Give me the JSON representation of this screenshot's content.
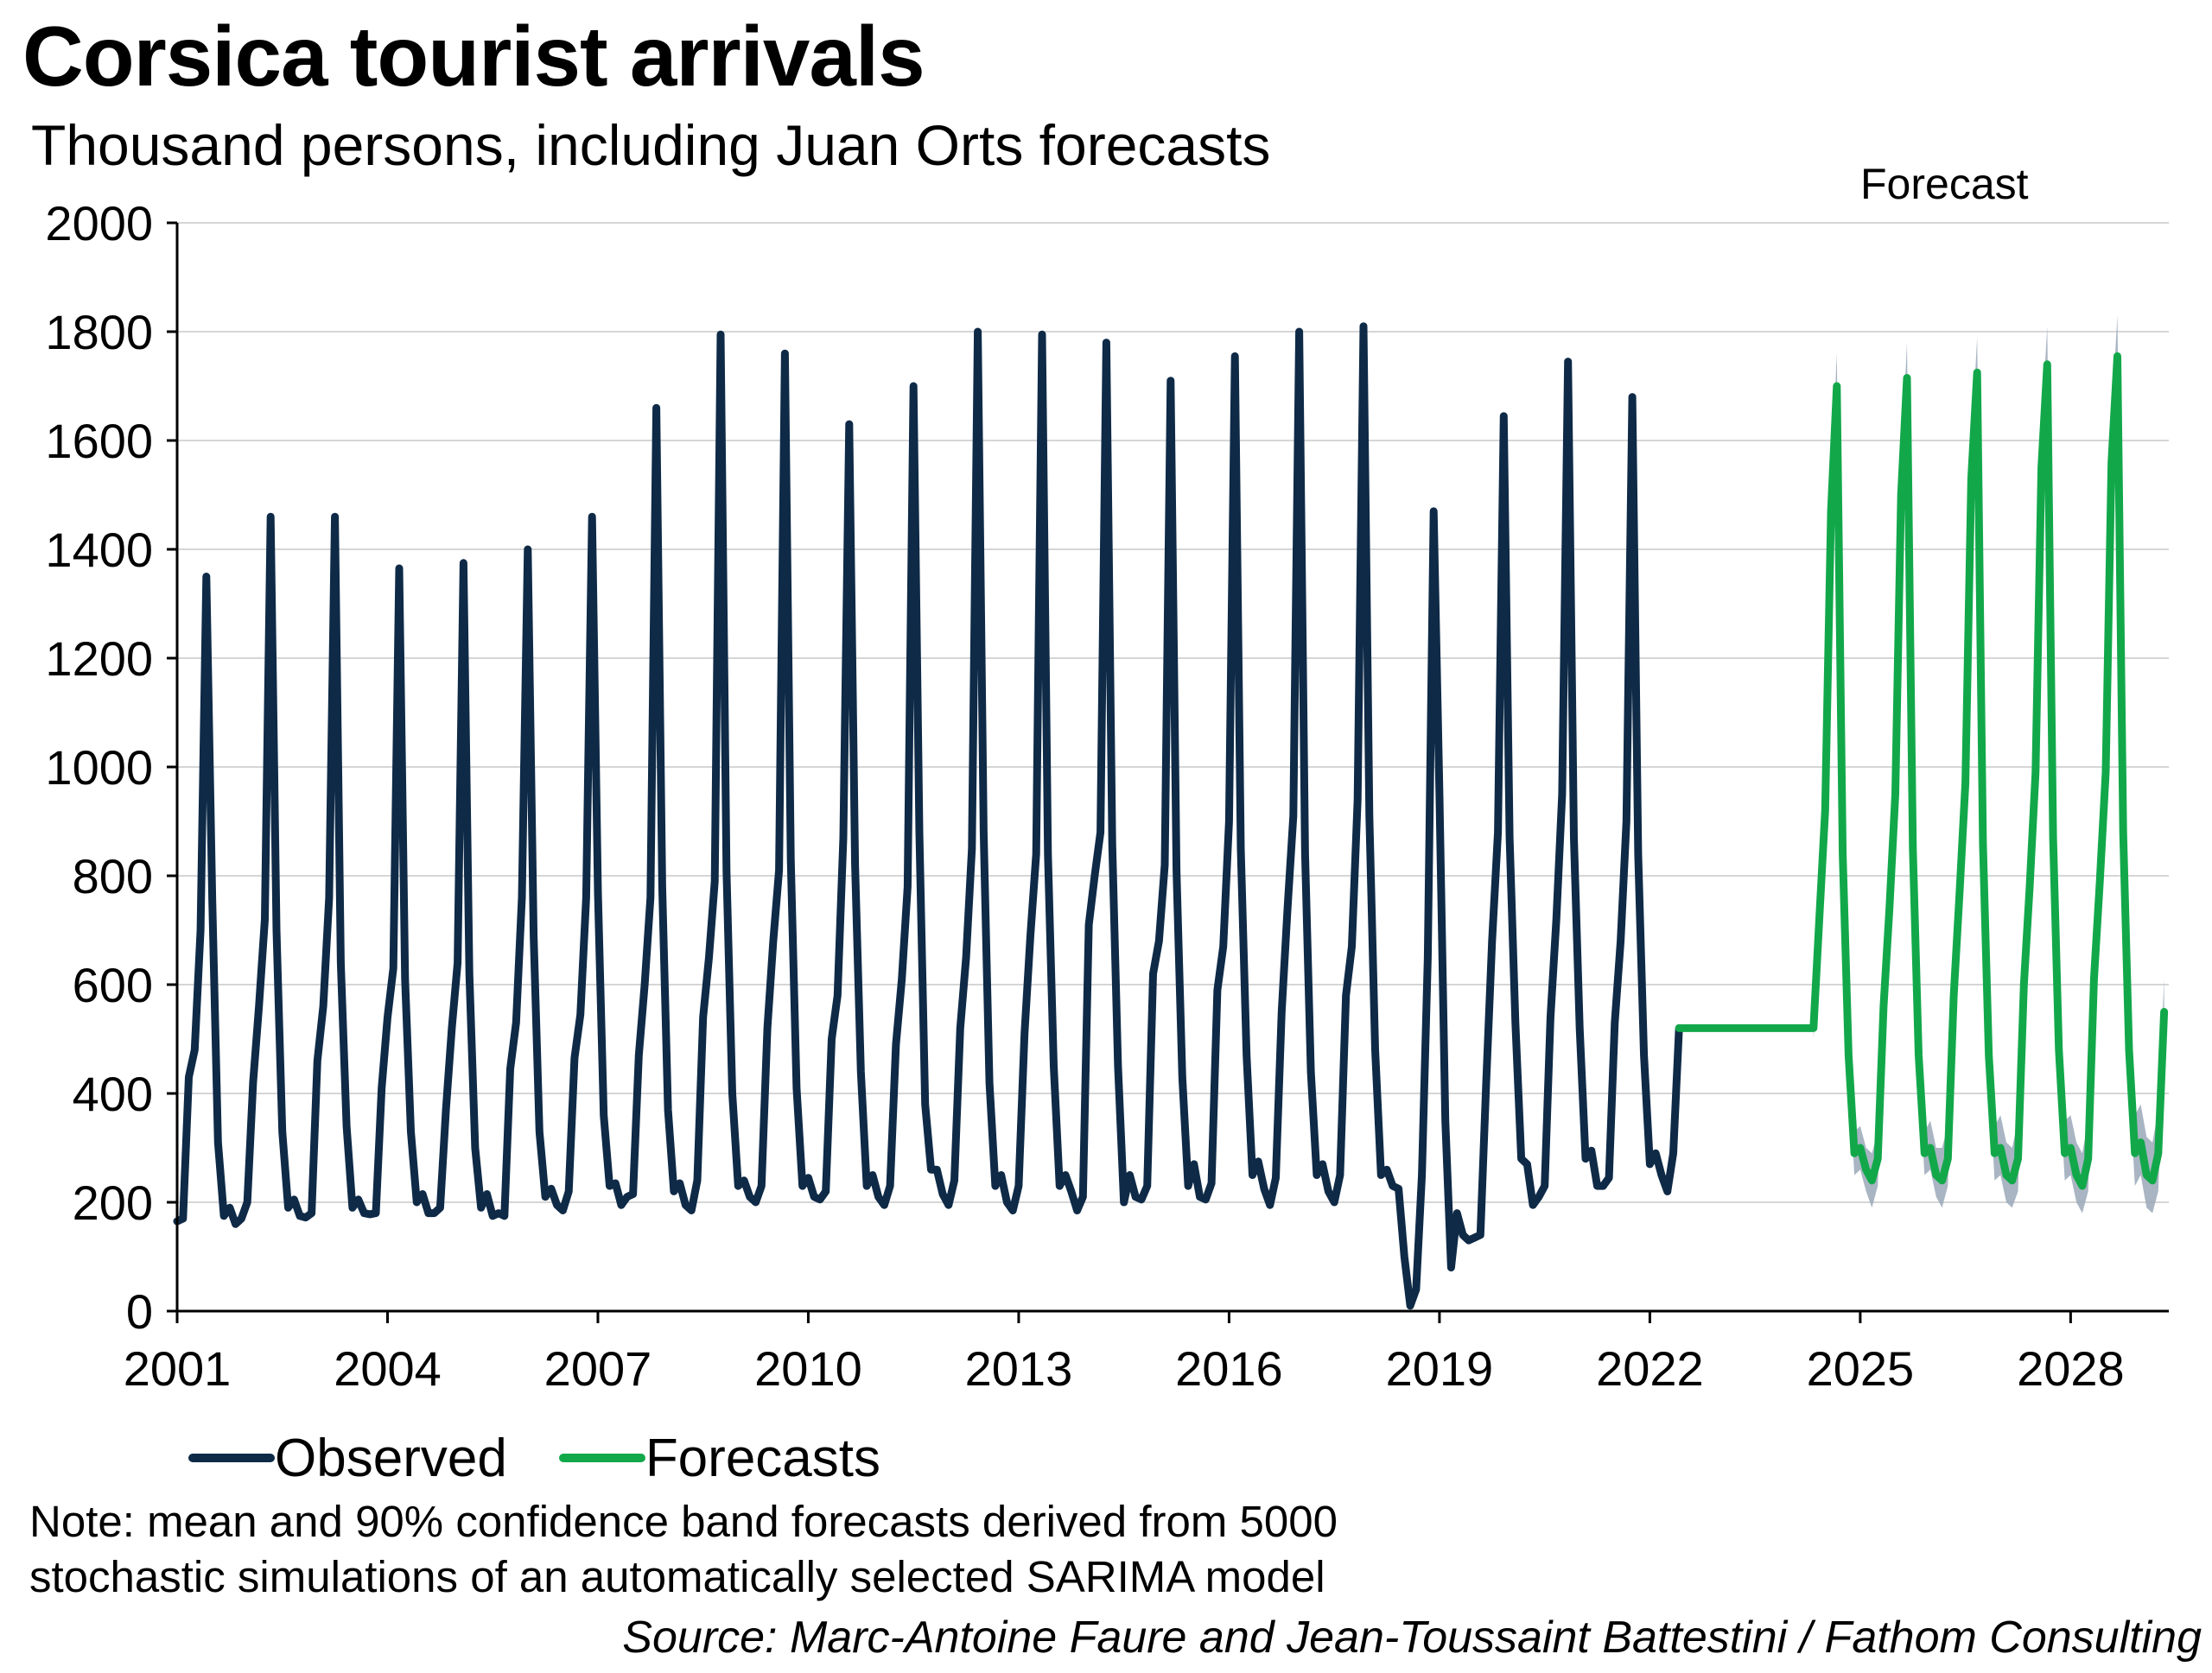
{
  "title": "Corsica tourist arrivals",
  "subtitle": "Thousand persons, including Juan Orts forecasts",
  "legend": {
    "observed": "Observed",
    "forecasts": "Forecasts"
  },
  "note": {
    "line1": "Note: mean and 90% confidence band forecasts derived from 5000",
    "line2": "stochastic simulations of an automatically selected SARIMA model"
  },
  "source": "Source: Marc-Antoine Faure and Jean-Toussaint Battestini / Fathom Consulting",
  "colors": {
    "observed": "#0e2a47",
    "forecast": "#12a84a",
    "band": "#9aa8b8",
    "grid": "#d6d6d6",
    "axis": "#000000"
  },
  "chart_data": {
    "type": "line",
    "title": "Corsica tourist arrivals",
    "subtitle": "Thousand persons, including Juan Orts forecasts",
    "xlabel": "",
    "ylabel": "",
    "x_range": [
      2001,
      2029.4
    ],
    "ylim": [
      0,
      2000
    ],
    "y_ticks": [
      0,
      200,
      400,
      600,
      800,
      1000,
      1200,
      1400,
      1600,
      1800,
      2000
    ],
    "x_ticks": [
      2001,
      2004,
      2007,
      2010,
      2013,
      2016,
      2019,
      2022,
      2025,
      2028
    ],
    "x_tick_labels": [
      "2001",
      "2004",
      "2007",
      "2010",
      "2013",
      "2016",
      "2019",
      "2022",
      "2025",
      "2028"
    ],
    "grid": true,
    "legend_position": "bottom-left",
    "annotation": {
      "text": "Forecast",
      "x": 2026.2
    },
    "frequency": "monthly",
    "observed_start": "2001-01",
    "forecast_start": "2024-05",
    "series": [
      {
        "name": "Observed",
        "values": [
          165,
          170,
          430,
          480,
          700,
          1350,
          760,
          310,
          175,
          190,
          160,
          170,
          200,
          420,
          560,
          720,
          1460,
          700,
          330,
          190,
          205,
          175,
          172,
          180,
          460,
          560,
          760,
          1460,
          640,
          340,
          190,
          205,
          180,
          178,
          180,
          410,
          540,
          630,
          1365,
          610,
          330,
          200,
          215,
          180,
          180,
          190,
          370,
          520,
          640,
          1375,
          620,
          300,
          190,
          215,
          175,
          180,
          175,
          445,
          530,
          760,
          1400,
          690,
          330,
          210,
          225,
          195,
          185,
          220,
          465,
          545,
          760,
          1460,
          770,
          360,
          230,
          235,
          195,
          210,
          215,
          470,
          600,
          760,
          1660,
          780,
          370,
          220,
          235,
          195,
          185,
          240,
          540,
          650,
          790,
          1795,
          810,
          400,
          230,
          240,
          210,
          200,
          230,
          520,
          680,
          810,
          1760,
          830,
          410,
          230,
          245,
          210,
          205,
          220,
          500,
          580,
          870,
          1630,
          820,
          440,
          230,
          250,
          210,
          195,
          230,
          490,
          610,
          780,
          1700,
          880,
          380,
          260,
          260,
          215,
          195,
          240,
          520,
          650,
          850,
          1800,
          880,
          420,
          230,
          250,
          200,
          185,
          230,
          510,
          690,
          840,
          1795,
          840,
          450,
          230,
          250,
          220,
          185,
          210,
          710,
          800,
          880,
          1780,
          860,
          450,
          200,
          250,
          210,
          205,
          230,
          620,
          680,
          820,
          1710,
          810,
          430,
          230,
          270,
          210,
          205,
          235,
          590,
          670,
          900,
          1755,
          850,
          470,
          250,
          275,
          225,
          195,
          245,
          550,
          740,
          910,
          1800,
          840,
          440,
          250,
          270,
          220,
          200,
          250,
          580,
          670,
          940,
          1810,
          910,
          480,
          250,
          260,
          230,
          225,
          100,
          10,
          40,
          250,
          650,
          1470,
          950,
          350,
          80,
          180,
          140,
          130,
          135,
          140,
          420,
          680,
          880,
          1645,
          870,
          530,
          280,
          270,
          195,
          210,
          230,
          540,
          720,
          950,
          1745,
          870,
          520,
          280,
          295,
          230,
          230,
          245,
          530,
          680,
          900,
          1680,
          840,
          470,
          270,
          290,
          250,
          220,
          290,
          520
        ]
      },
      {
        "name": "Forecasts",
        "values": [
          520,
          720,
          920,
          1470,
          1700,
          840,
          470,
          290,
          300,
          260,
          240,
          280,
          560,
          740,
          950,
          1500,
          1715,
          850,
          470,
          290,
          300,
          250,
          240,
          280,
          580,
          770,
          970,
          1530,
          1725,
          860,
          470,
          290,
          300,
          250,
          240,
          280,
          600,
          780,
          990,
          1550,
          1740,
          870,
          480,
          290,
          300,
          250,
          230,
          280,
          610,
          790,
          990,
          1560,
          1755,
          880,
          480,
          290,
          310,
          250,
          240,
          290,
          550
        ],
        "band_90": {
          "lower": [
            500,
            690,
            880,
            1420,
            1640,
            800,
            440,
            250,
            260,
            220,
            190,
            230,
            520,
            700,
            900,
            1450,
            1650,
            800,
            430,
            250,
            260,
            210,
            190,
            230,
            530,
            720,
            910,
            1470,
            1660,
            810,
            430,
            240,
            250,
            200,
            190,
            220,
            540,
            720,
            920,
            1480,
            1670,
            810,
            430,
            240,
            250,
            200,
            180,
            220,
            540,
            720,
            920,
            1480,
            1680,
            820,
            420,
            230,
            250,
            190,
            180,
            220,
            500
          ],
          "upper": [
            540,
            750,
            960,
            1520,
            1760,
            880,
            500,
            330,
            340,
            300,
            290,
            330,
            600,
            780,
            1000,
            1550,
            1780,
            900,
            510,
            330,
            350,
            300,
            300,
            340,
            630,
            820,
            1030,
            1590,
            1790,
            910,
            510,
            340,
            360,
            310,
            300,
            350,
            660,
            840,
            1060,
            1620,
            1810,
            930,
            530,
            350,
            360,
            310,
            290,
            350,
            680,
            860,
            1060,
            1640,
            1830,
            940,
            540,
            360,
            380,
            320,
            310,
            370,
            610
          ]
        }
      }
    ]
  }
}
